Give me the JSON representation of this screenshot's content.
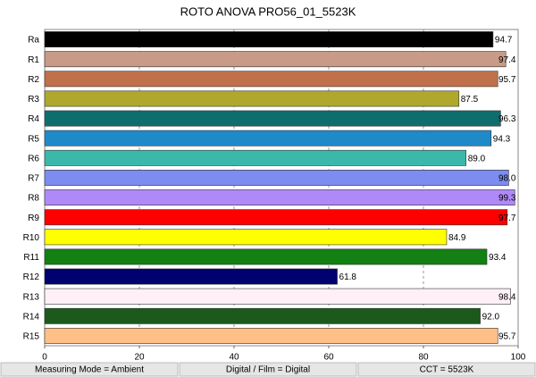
{
  "chart_data": {
    "type": "bar",
    "orientation": "horizontal",
    "title": "ROTO ANOVA PRO56_01_5523K",
    "categories": [
      "Ra",
      "R1",
      "R2",
      "R3",
      "R4",
      "R5",
      "R6",
      "R7",
      "R8",
      "R9",
      "R10",
      "R11",
      "R12",
      "R13",
      "R14",
      "R15"
    ],
    "values": [
      94.7,
      97.4,
      95.7,
      87.5,
      96.3,
      94.3,
      89.0,
      98.0,
      99.3,
      97.7,
      84.9,
      93.4,
      61.8,
      98.4,
      92.0,
      95.7
    ],
    "value_labels": [
      "94.7",
      "97.4",
      "95.7",
      "87.5",
      "96.3",
      "94.3",
      "89.0",
      "98.0",
      "99.3",
      "97.7",
      "84.9",
      "93.4",
      "61.8",
      "98.4",
      "92.0",
      "95.7"
    ],
    "colors": [
      "#000000",
      "#c89a88",
      "#c0704a",
      "#b0a82c",
      "#0e6e6e",
      "#1f8ac8",
      "#3cb8aa",
      "#7c8cf0",
      "#b089f8",
      "#ff0000",
      "#ffff00",
      "#128012",
      "#000070",
      "#fff0f8",
      "#1b5a1b",
      "#ffc088"
    ],
    "xlim": [
      0,
      100
    ],
    "xticks": [
      0,
      20,
      40,
      60,
      80,
      100
    ],
    "grid": true
  },
  "footer": [
    "Measuring Mode = Ambient",
    "Digital / Film = Digital",
    "CCT = 5523K"
  ]
}
